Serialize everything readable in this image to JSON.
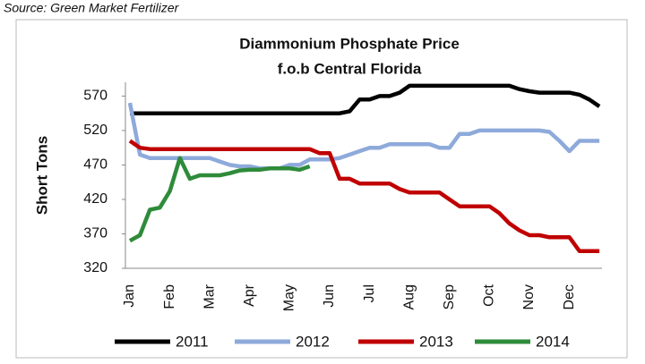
{
  "chart_data": {
    "type": "line",
    "source": "Source: Green Market Fertilizer",
    "title": "Diammonium Phosphate Price",
    "subtitle": "f.o.b Central Florida",
    "y_label": "Short Tons",
    "categories": [
      "Jan",
      null,
      null,
      null,
      "Feb",
      null,
      null,
      null,
      "Mar",
      null,
      null,
      null,
      "Apr",
      null,
      null,
      null,
      "May",
      null,
      null,
      null,
      "Jun",
      null,
      null,
      null,
      "Jul",
      null,
      null,
      null,
      "Aug",
      null,
      null,
      null,
      "Sep",
      null,
      null,
      null,
      "Oct",
      null,
      null,
      null,
      "Nov",
      null,
      null,
      null,
      "Dec",
      null,
      null,
      null
    ],
    "series": [
      {
        "name": "2011",
        "color": "#000000",
        "values": [
          545,
          545,
          545,
          545,
          545,
          545,
          545,
          545,
          545,
          545,
          545,
          545,
          545,
          545,
          545,
          545,
          545,
          545,
          545,
          545,
          545,
          545,
          548,
          565,
          565,
          570,
          570,
          575,
          585,
          585,
          585,
          585,
          585,
          585,
          585,
          585,
          585,
          585,
          585,
          580,
          577,
          575,
          575,
          575,
          575,
          572,
          565,
          555
        ]
      },
      {
        "name": "2012",
        "color": "#8eaadb",
        "values": [
          560,
          485,
          480,
          480,
          480,
          480,
          480,
          480,
          480,
          475,
          470,
          468,
          468,
          465,
          465,
          465,
          470,
          470,
          478,
          478,
          478,
          480,
          485,
          490,
          495,
          495,
          500,
          500,
          500,
          500,
          500,
          495,
          495,
          515,
          515,
          520,
          520,
          520,
          520,
          520,
          520,
          520,
          518,
          505,
          490,
          505,
          505,
          505
        ]
      },
      {
        "name": "2013",
        "color": "#c00000",
        "values": [
          505,
          495,
          493,
          493,
          493,
          493,
          493,
          493,
          493,
          493,
          493,
          493,
          493,
          493,
          493,
          493,
          493,
          493,
          493,
          487,
          487,
          450,
          450,
          443,
          443,
          443,
          443,
          435,
          430,
          430,
          430,
          430,
          420,
          410,
          410,
          410,
          410,
          400,
          385,
          375,
          368,
          368,
          365,
          365,
          365,
          345,
          345,
          345
        ]
      },
      {
        "name": "2014",
        "color": "#2e8b3a",
        "values": [
          360,
          368,
          405,
          408,
          432,
          480,
          450,
          455,
          455,
          455,
          458,
          462,
          463,
          463,
          465,
          465,
          465,
          463,
          468,
          null,
          null,
          null,
          null,
          null,
          null,
          null,
          null,
          null,
          null,
          null,
          null,
          null,
          null,
          null,
          null,
          null,
          null,
          null,
          null,
          null,
          null,
          null,
          null,
          null,
          null,
          null,
          null,
          null
        ]
      }
    ],
    "ylim": [
      320,
      590
    ],
    "yticks": [
      320,
      370,
      420,
      470,
      520,
      570
    ]
  }
}
